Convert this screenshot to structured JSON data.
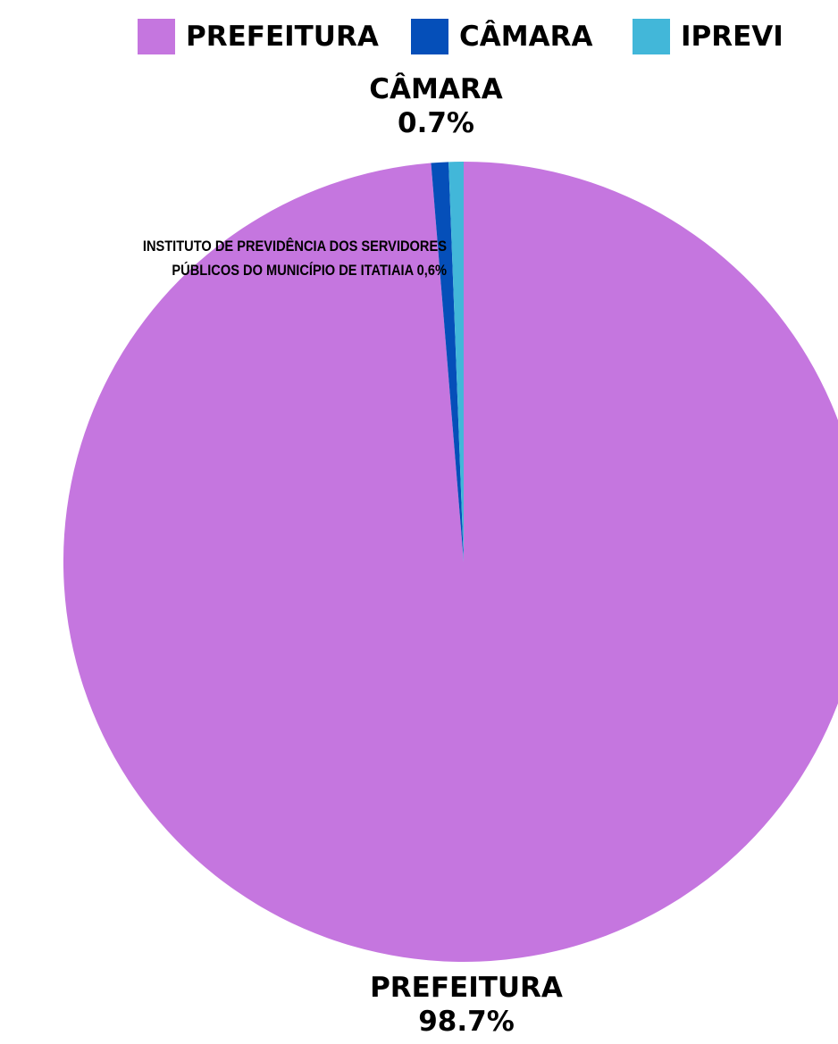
{
  "chart_data": {
    "type": "pie",
    "title": "",
    "legend": {
      "position": "top-right",
      "items": [
        {
          "label": "PREFEITURA",
          "color": "#c576df"
        },
        {
          "label": "CÂMARA",
          "color": "#054fb9"
        },
        {
          "label": "IPREVI",
          "color": "#42b7d9"
        }
      ]
    },
    "slices": [
      {
        "name": "PREFEITURA",
        "value": 98.7,
        "color": "#c576df",
        "label": "PREFEITURA",
        "value_label": "98.7%"
      },
      {
        "name": "CÂMARA",
        "value": 0.7,
        "color": "#054fb9",
        "label": "CÂMARA",
        "value_label": "0.7%"
      },
      {
        "name": "IPREVI",
        "value": 0.6,
        "color": "#42b7d9",
        "label_line1": "INSTITUTO DE PREVIDÊNCIA DOS SERVIDORES",
        "label_line2": "PÚBLICOS DO MUNICÍPIO DE ITATIAIA 0,6%"
      }
    ]
  }
}
